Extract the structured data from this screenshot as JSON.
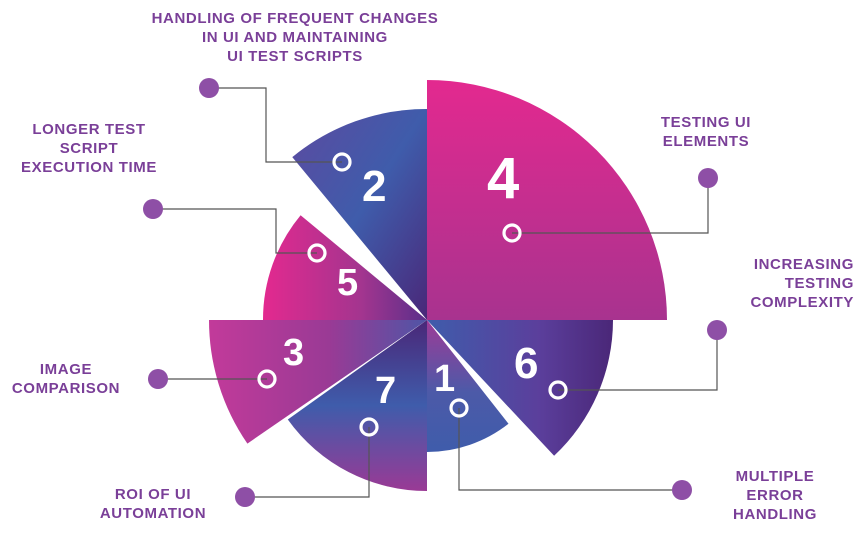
{
  "segments": [
    {
      "number": "4",
      "label": "TESTING UI\nELEMENTS"
    },
    {
      "number": "2",
      "label": "HANDLING OF FREQUENT CHANGES\nIN UI AND MAINTAINING\nUI TEST SCRIPTS"
    },
    {
      "number": "5",
      "label": "LONGER TEST\nSCRIPT\nEXECUTION TIME"
    },
    {
      "number": "3",
      "label": "IMAGE\nCOMPARISON"
    },
    {
      "number": "7",
      "label": "ROI OF UI\nAUTOMATION"
    },
    {
      "number": "1",
      "label": "MULTIPLE\nERROR\nHANDLING"
    },
    {
      "number": "6",
      "label": "INCREASING\nTESTING\nCOMPLEXITY"
    }
  ],
  "colors": {
    "label_text": "#7a3f98",
    "connector_dot": "#8e4fa6",
    "connector_line": "#555555",
    "pink": "#e3298f",
    "magenta": "#b42a8e",
    "blue": "#3f5cab",
    "purple": "#6a3a95",
    "dark_purple": "#4a2778"
  }
}
